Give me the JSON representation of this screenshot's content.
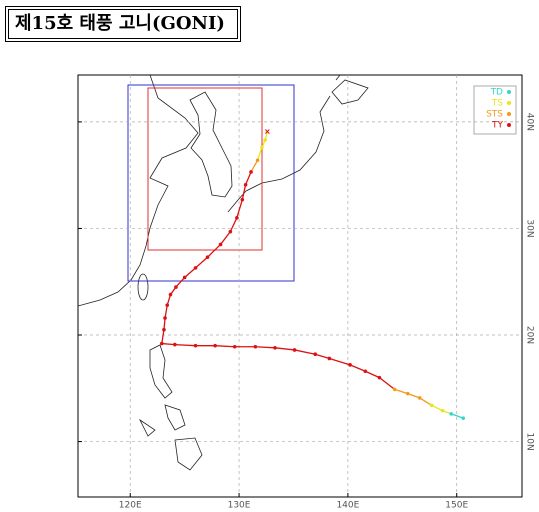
{
  "title": "제15호 태풍 고니(GONI)",
  "map": {
    "lonlim": [
      115.2,
      156
    ],
    "latlim": [
      4.8,
      44.4
    ],
    "lonticks": [
      {
        "value": 120,
        "label": "120E"
      },
      {
        "value": 130,
        "label": "130E"
      },
      {
        "value": 140,
        "label": "140E"
      },
      {
        "value": 150,
        "label": "150E"
      }
    ],
    "latticks": [
      {
        "value": 10,
        "label": "10N"
      },
      {
        "value": 20,
        "label": "20N"
      },
      {
        "value": 30,
        "label": "30N"
      },
      {
        "value": 40,
        "label": "40N"
      }
    ],
    "grid": true
  },
  "legend": [
    {
      "label": "TD",
      "color": "#33d6c8"
    },
    {
      "label": "TS",
      "color": "#e6e619"
    },
    {
      "label": "STS",
      "color": "#f39a1c"
    },
    {
      "label": "TY",
      "color": "#dd1111"
    }
  ],
  "track": [
    {
      "lon": 150.6,
      "lat": 12.2,
      "stage": 0
    },
    {
      "lon": 149.5,
      "lat": 12.6,
      "stage": 0
    },
    {
      "lon": 148.7,
      "lat": 12.9,
      "stage": 1
    },
    {
      "lon": 147.7,
      "lat": 13.4,
      "stage": 1
    },
    {
      "lon": 146.6,
      "lat": 14.1,
      "stage": 2
    },
    {
      "lon": 145.5,
      "lat": 14.5,
      "stage": 2
    },
    {
      "lon": 144.3,
      "lat": 14.9,
      "stage": 2
    },
    {
      "lon": 142.9,
      "lat": 16.0,
      "stage": 3
    },
    {
      "lon": 141.6,
      "lat": 16.6,
      "stage": 3
    },
    {
      "lon": 140.2,
      "lat": 17.2,
      "stage": 3
    },
    {
      "lon": 138.3,
      "lat": 17.8,
      "stage": 3
    },
    {
      "lon": 137.0,
      "lat": 18.2,
      "stage": 3
    },
    {
      "lon": 135.1,
      "lat": 18.6,
      "stage": 3
    },
    {
      "lon": 133.3,
      "lat": 18.8,
      "stage": 3
    },
    {
      "lon": 131.5,
      "lat": 18.9,
      "stage": 3
    },
    {
      "lon": 129.6,
      "lat": 18.9,
      "stage": 3
    },
    {
      "lon": 127.8,
      "lat": 19.0,
      "stage": 3
    },
    {
      "lon": 126.0,
      "lat": 19.0,
      "stage": 3
    },
    {
      "lon": 124.1,
      "lat": 19.1,
      "stage": 3
    },
    {
      "lon": 122.9,
      "lat": 19.2,
      "stage": 3
    },
    {
      "lon": 123.1,
      "lat": 20.5,
      "stage": 3
    },
    {
      "lon": 123.2,
      "lat": 21.6,
      "stage": 3
    },
    {
      "lon": 123.4,
      "lat": 22.8,
      "stage": 3
    },
    {
      "lon": 123.7,
      "lat": 23.8,
      "stage": 3
    },
    {
      "lon": 124.2,
      "lat": 24.5,
      "stage": 3
    },
    {
      "lon": 125.0,
      "lat": 25.4,
      "stage": 3
    },
    {
      "lon": 126.0,
      "lat": 26.3,
      "stage": 3
    },
    {
      "lon": 127.1,
      "lat": 27.3,
      "stage": 3
    },
    {
      "lon": 128.3,
      "lat": 28.5,
      "stage": 3
    },
    {
      "lon": 129.2,
      "lat": 29.7,
      "stage": 3
    },
    {
      "lon": 129.8,
      "lat": 31.0,
      "stage": 3
    },
    {
      "lon": 130.3,
      "lat": 32.7,
      "stage": 3
    },
    {
      "lon": 130.6,
      "lat": 34.1,
      "stage": 3
    },
    {
      "lon": 131.1,
      "lat": 35.3,
      "stage": 3
    },
    {
      "lon": 131.7,
      "lat": 36.4,
      "stage": 2
    },
    {
      "lon": 132.1,
      "lat": 37.6,
      "stage": 1
    },
    {
      "lon": 132.4,
      "lat": 38.3,
      "stage": 1
    },
    {
      "lon": 132.6,
      "lat": 39.1,
      "stage": 1
    }
  ]
}
